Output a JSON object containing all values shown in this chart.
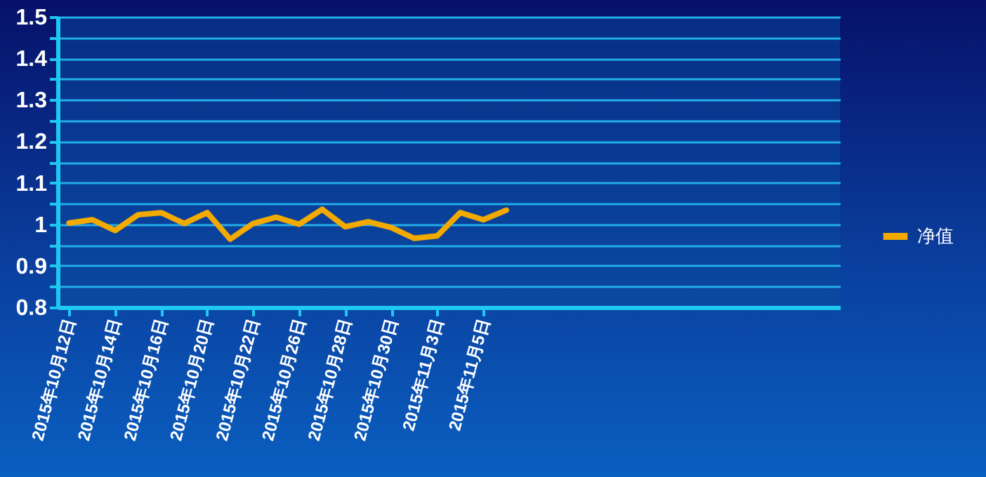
{
  "chart_data": {
    "type": "line",
    "categories": [
      "2015年10月12日",
      null,
      "2015年10月14日",
      null,
      "2015年10月16日",
      null,
      "2015年10月20日",
      null,
      "2015年10月22日",
      null,
      "2015年10月26日",
      null,
      "2015年10月28日",
      null,
      "2015年10月30日",
      null,
      "2015年11月3日",
      null,
      "2015年11月5日",
      null,
      null,
      null,
      null,
      null,
      null,
      null,
      null,
      null,
      null,
      null,
      null,
      null,
      null,
      null
    ],
    "series": [
      {
        "name": "净值",
        "color": "#f2a900",
        "values": [
          1.003,
          1.011,
          0.985,
          1.023,
          1.028,
          1.002,
          1.028,
          0.964,
          1.002,
          1.017,
          1.0,
          1.036,
          0.994,
          1.006,
          0.992,
          0.966,
          0.972,
          1.028,
          1.011,
          1.034,
          null,
          null,
          null,
          null,
          null,
          null,
          null,
          null,
          null,
          null,
          null,
          null,
          null,
          null
        ]
      }
    ],
    "ylim": [
      0.8,
      1.5
    ],
    "yticks": [
      0.8,
      {
        "value": 0.85,
        "label": null
      },
      0.9,
      {
        "value": 0.95,
        "label": null
      },
      {
        "value": 1.0,
        "label": "1"
      },
      {
        "value": 1.05,
        "label": null
      },
      1.1,
      {
        "value": 1.15,
        "label": null
      },
      1.2,
      {
        "value": 1.25,
        "label": null
      },
      1.3,
      {
        "value": 1.35,
        "label": null
      },
      1.4,
      {
        "value": 1.45,
        "label": null
      },
      1.5
    ],
    "grid": "y",
    "legend": "right",
    "line_style": "solid"
  }
}
